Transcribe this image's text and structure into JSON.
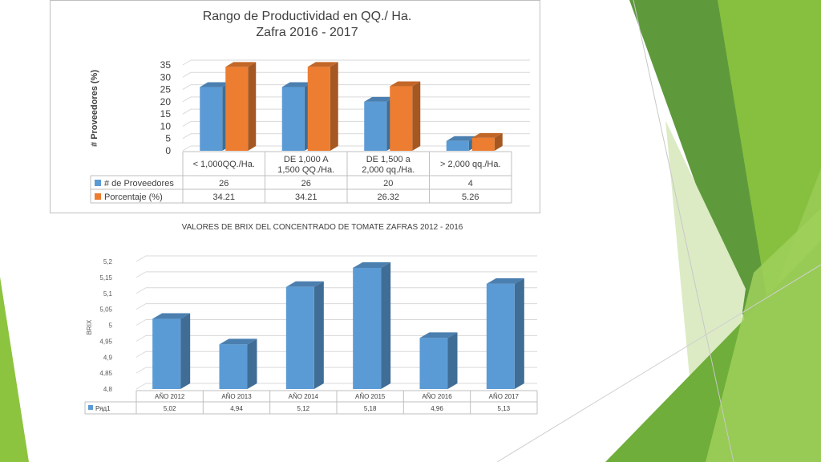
{
  "colors": {
    "blue": "#5b9bd5",
    "orange": "#ed7d31",
    "green_dark": "#5e9a3c",
    "green_mid": "#8cc43f",
    "green_light": "#c9e3a0"
  },
  "chart_data": [
    {
      "type": "bar",
      "title": "Rango de Productividad en QQ./ Ha.",
      "subtitle": "Zafra 2016 - 2017",
      "ylabel": "# Proveedores (%)",
      "xlabel": "",
      "ylim": [
        0,
        35
      ],
      "yticks": [
        "0",
        "5",
        "10",
        "15",
        "20",
        "25",
        "30",
        "35"
      ],
      "grid": true,
      "categories": [
        [
          "< 1,000QQ./Ha."
        ],
        [
          "DE 1,000 A",
          "1,500 QQ./Ha."
        ],
        [
          "DE 1,500 a",
          "2,000 qq./Ha."
        ],
        [
          "> 2,000 qq./Ha."
        ]
      ],
      "series": [
        {
          "name": "# de Proveedores",
          "values": [
            26,
            26,
            20,
            4
          ],
          "labels": [
            "26",
            "26",
            "20",
            "4"
          ]
        },
        {
          "name": "Porcentaje (%)",
          "values": [
            34.21,
            34.21,
            26.32,
            5.26
          ],
          "labels": [
            "34.21",
            "34.21",
            "26.32",
            "5.26"
          ]
        }
      ]
    },
    {
      "type": "bar",
      "title": "VALORES DE BRIX DEL CONCENTRADO DE TOMATE ZAFRAS 2012 - 2016",
      "ylabel": "BRIX",
      "xlabel": "",
      "ylim": [
        4.8,
        5.2
      ],
      "yticks": [
        "4,8",
        "4,85",
        "4,9",
        "4,95",
        "5",
        "5,05",
        "5,1",
        "5,15",
        "5,2"
      ],
      "grid": true,
      "categories": [
        "AÑO 2012",
        "AÑO 2013",
        "AÑO 2014",
        "AÑO 2015",
        "AÑO 2016",
        "AÑO 2017"
      ],
      "series": [
        {
          "name": "Ряд1",
          "values": [
            5.02,
            4.94,
            5.12,
            5.18,
            4.96,
            5.13
          ],
          "labels": [
            "5,02",
            "4,94",
            "5,12",
            "5,18",
            "4,96",
            "5,13"
          ]
        }
      ]
    }
  ]
}
